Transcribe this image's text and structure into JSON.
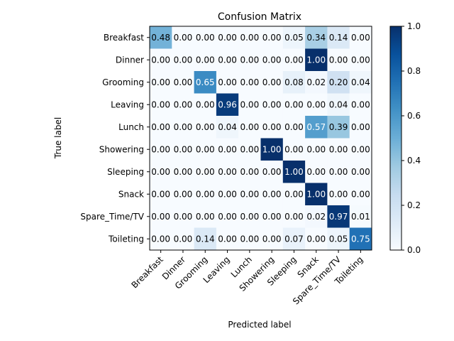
{
  "chart_data": {
    "type": "heatmap",
    "title": "Confusion Matrix",
    "xlabel": "Predicted label",
    "ylabel": "True label",
    "row_labels": [
      "Breakfast",
      "Dinner",
      "Grooming",
      "Leaving",
      "Lunch",
      "Showering",
      "Sleeping",
      "Snack",
      "Spare_Time/TV",
      "Toileting"
    ],
    "col_labels": [
      "Breakfast",
      "Dinner",
      "Grooming",
      "Leaving",
      "Lunch",
      "Showering",
      "Sleeping",
      "Snack",
      "Spare_Time/TV",
      "Toileting"
    ],
    "values": [
      [
        0.48,
        0.0,
        0.0,
        0.0,
        0.0,
        0.0,
        0.05,
        0.34,
        0.14,
        0.0
      ],
      [
        0.0,
        0.0,
        0.0,
        0.0,
        0.0,
        0.0,
        0.0,
        1.0,
        0.0,
        0.0
      ],
      [
        0.0,
        0.0,
        0.65,
        0.0,
        0.0,
        0.0,
        0.08,
        0.02,
        0.2,
        0.04
      ],
      [
        0.0,
        0.0,
        0.0,
        0.96,
        0.0,
        0.0,
        0.0,
        0.0,
        0.04,
        0.0
      ],
      [
        0.0,
        0.0,
        0.0,
        0.04,
        0.0,
        0.0,
        0.0,
        0.57,
        0.39,
        0.0
      ],
      [
        0.0,
        0.0,
        0.0,
        0.0,
        0.0,
        1.0,
        0.0,
        0.0,
        0.0,
        0.0
      ],
      [
        0.0,
        0.0,
        0.0,
        0.0,
        0.0,
        0.0,
        1.0,
        0.0,
        0.0,
        0.0
      ],
      [
        0.0,
        0.0,
        0.0,
        0.0,
        0.0,
        0.0,
        0.0,
        1.0,
        0.0,
        0.0
      ],
      [
        0.0,
        0.0,
        0.0,
        0.0,
        0.0,
        0.0,
        0.0,
        0.02,
        0.97,
        0.01
      ],
      [
        0.0,
        0.0,
        0.14,
        0.0,
        0.0,
        0.0,
        0.07,
        0.0,
        0.05,
        0.75
      ]
    ],
    "value_format": "0.00",
    "colormap": "Blues",
    "color_range": [
      0.0,
      1.0
    ],
    "colorbar_ticks": [
      "0.0",
      "0.2",
      "0.4",
      "0.6",
      "0.8",
      "1.0"
    ],
    "colorbar": true,
    "grid": false
  }
}
